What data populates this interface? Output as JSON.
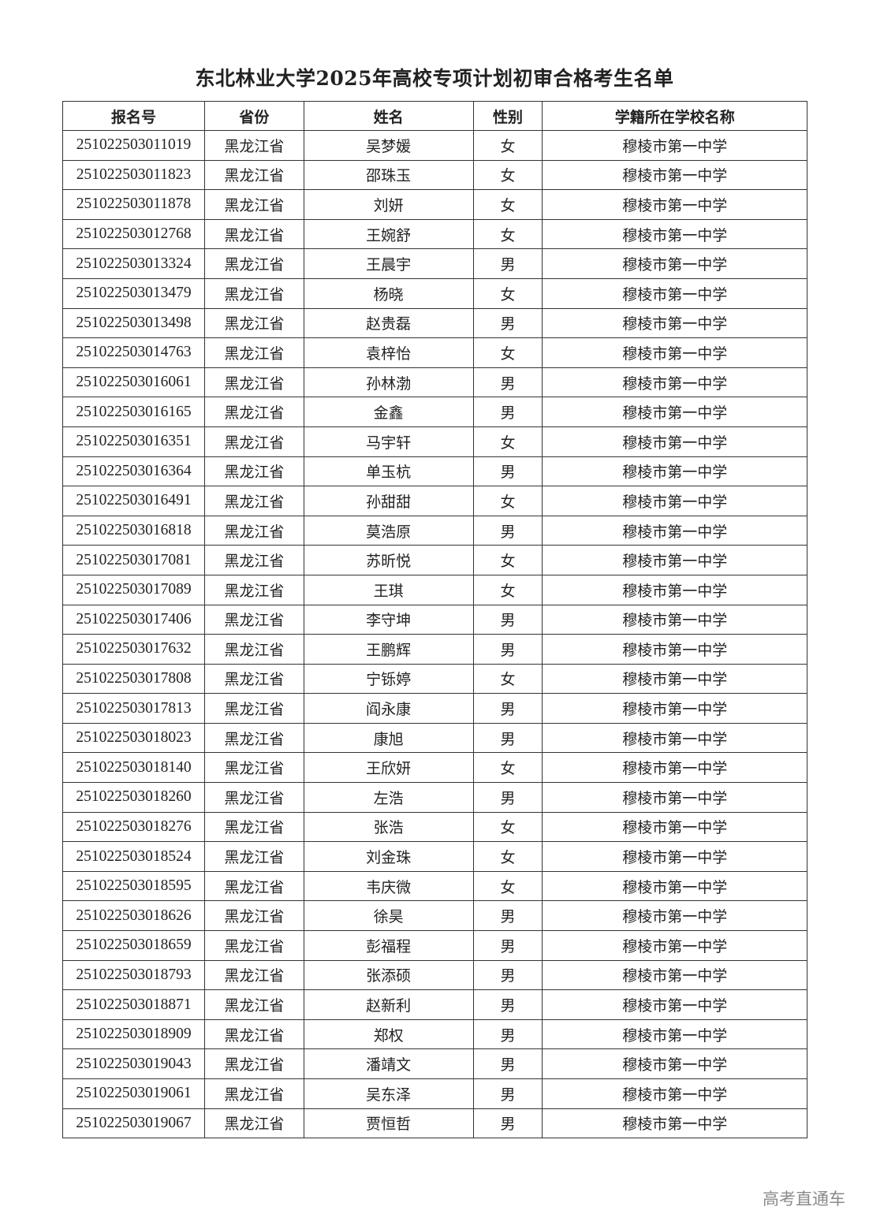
{
  "title": "东北林业大学2025年高校专项计划初审合格考生名单",
  "columns": [
    "报名号",
    "省份",
    "姓名",
    "性别",
    "学籍所在学校名称"
  ],
  "rows": [
    [
      "251022503011019",
      "黑龙江省",
      "吴梦媛",
      "女",
      "穆棱市第一中学"
    ],
    [
      "251022503011823",
      "黑龙江省",
      "邵珠玉",
      "女",
      "穆棱市第一中学"
    ],
    [
      "251022503011878",
      "黑龙江省",
      "刘妍",
      "女",
      "穆棱市第一中学"
    ],
    [
      "251022503012768",
      "黑龙江省",
      "王婉舒",
      "女",
      "穆棱市第一中学"
    ],
    [
      "251022503013324",
      "黑龙江省",
      "王晨宇",
      "男",
      "穆棱市第一中学"
    ],
    [
      "251022503013479",
      "黑龙江省",
      "杨晓",
      "女",
      "穆棱市第一中学"
    ],
    [
      "251022503013498",
      "黑龙江省",
      "赵贵磊",
      "男",
      "穆棱市第一中学"
    ],
    [
      "251022503014763",
      "黑龙江省",
      "袁梓怡",
      "女",
      "穆棱市第一中学"
    ],
    [
      "251022503016061",
      "黑龙江省",
      "孙林渤",
      "男",
      "穆棱市第一中学"
    ],
    [
      "251022503016165",
      "黑龙江省",
      "金鑫",
      "男",
      "穆棱市第一中学"
    ],
    [
      "251022503016351",
      "黑龙江省",
      "马宇轩",
      "女",
      "穆棱市第一中学"
    ],
    [
      "251022503016364",
      "黑龙江省",
      "单玉杭",
      "男",
      "穆棱市第一中学"
    ],
    [
      "251022503016491",
      "黑龙江省",
      "孙甜甜",
      "女",
      "穆棱市第一中学"
    ],
    [
      "251022503016818",
      "黑龙江省",
      "莫浩原",
      "男",
      "穆棱市第一中学"
    ],
    [
      "251022503017081",
      "黑龙江省",
      "苏昕悦",
      "女",
      "穆棱市第一中学"
    ],
    [
      "251022503017089",
      "黑龙江省",
      "王琪",
      "女",
      "穆棱市第一中学"
    ],
    [
      "251022503017406",
      "黑龙江省",
      "李守坤",
      "男",
      "穆棱市第一中学"
    ],
    [
      "251022503017632",
      "黑龙江省",
      "王鹏辉",
      "男",
      "穆棱市第一中学"
    ],
    [
      "251022503017808",
      "黑龙江省",
      "宁铄婷",
      "女",
      "穆棱市第一中学"
    ],
    [
      "251022503017813",
      "黑龙江省",
      "阎永康",
      "男",
      "穆棱市第一中学"
    ],
    [
      "251022503018023",
      "黑龙江省",
      "康旭",
      "男",
      "穆棱市第一中学"
    ],
    [
      "251022503018140",
      "黑龙江省",
      "王欣妍",
      "女",
      "穆棱市第一中学"
    ],
    [
      "251022503018260",
      "黑龙江省",
      "左浩",
      "男",
      "穆棱市第一中学"
    ],
    [
      "251022503018276",
      "黑龙江省",
      "张浩",
      "女",
      "穆棱市第一中学"
    ],
    [
      "251022503018524",
      "黑龙江省",
      "刘金珠",
      "女",
      "穆棱市第一中学"
    ],
    [
      "251022503018595",
      "黑龙江省",
      "韦庆微",
      "女",
      "穆棱市第一中学"
    ],
    [
      "251022503018626",
      "黑龙江省",
      "徐昊",
      "男",
      "穆棱市第一中学"
    ],
    [
      "251022503018659",
      "黑龙江省",
      "彭福程",
      "男",
      "穆棱市第一中学"
    ],
    [
      "251022503018793",
      "黑龙江省",
      "张添硕",
      "男",
      "穆棱市第一中学"
    ],
    [
      "251022503018871",
      "黑龙江省",
      "赵新利",
      "男",
      "穆棱市第一中学"
    ],
    [
      "251022503018909",
      "黑龙江省",
      "郑权",
      "男",
      "穆棱市第一中学"
    ],
    [
      "251022503019043",
      "黑龙江省",
      "潘靖文",
      "男",
      "穆棱市第一中学"
    ],
    [
      "251022503019061",
      "黑龙江省",
      "吴东泽",
      "男",
      "穆棱市第一中学"
    ],
    [
      "251022503019067",
      "黑龙江省",
      "贾恒哲",
      "男",
      "穆棱市第一中学"
    ]
  ],
  "watermark": "高考直通车"
}
